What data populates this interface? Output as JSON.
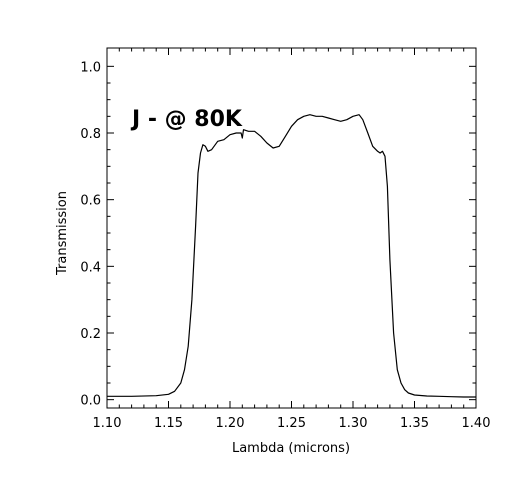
{
  "chart_data": {
    "type": "line",
    "title": "",
    "annotation": "J - @ 80K",
    "xlabel": "Lambda (microns)",
    "ylabel": "Transmission",
    "xlim": [
      1.1,
      1.4
    ],
    "ylim": [
      -0.025,
      1.055
    ],
    "xticks": [
      "1.10",
      "1.15",
      "1.20",
      "1.25",
      "1.30",
      "1.35",
      "1.40"
    ],
    "yticks": [
      "0.0",
      "0.2",
      "0.4",
      "0.6",
      "0.8",
      "1.0"
    ],
    "grid": false,
    "series": [
      {
        "x": [
          1.1,
          1.12,
          1.14,
          1.15,
          1.155,
          1.16,
          1.163,
          1.166,
          1.169,
          1.172,
          1.174,
          1.176,
          1.178,
          1.18,
          1.182,
          1.185,
          1.19,
          1.195,
          1.2,
          1.205,
          1.209,
          1.21,
          1.211,
          1.215,
          1.22,
          1.225,
          1.23,
          1.235,
          1.24,
          1.245,
          1.25,
          1.255,
          1.26,
          1.265,
          1.27,
          1.275,
          1.28,
          1.285,
          1.29,
          1.295,
          1.3,
          1.305,
          1.308,
          1.312,
          1.316,
          1.32,
          1.322,
          1.324,
          1.326,
          1.328,
          1.33,
          1.333,
          1.336,
          1.339,
          1.342,
          1.345,
          1.35,
          1.36,
          1.37,
          1.38,
          1.39,
          1.4
        ],
        "y": [
          0.01,
          0.01,
          0.012,
          0.016,
          0.025,
          0.05,
          0.09,
          0.16,
          0.3,
          0.52,
          0.68,
          0.74,
          0.765,
          0.76,
          0.745,
          0.75,
          0.775,
          0.78,
          0.795,
          0.8,
          0.8,
          0.785,
          0.81,
          0.805,
          0.805,
          0.79,
          0.77,
          0.755,
          0.76,
          0.79,
          0.82,
          0.84,
          0.85,
          0.855,
          0.85,
          0.85,
          0.845,
          0.84,
          0.835,
          0.84,
          0.85,
          0.855,
          0.84,
          0.8,
          0.76,
          0.745,
          0.74,
          0.745,
          0.73,
          0.64,
          0.42,
          0.2,
          0.09,
          0.05,
          0.03,
          0.02,
          0.014,
          0.011,
          0.01,
          0.009,
          0.008,
          0.008
        ]
      }
    ]
  }
}
